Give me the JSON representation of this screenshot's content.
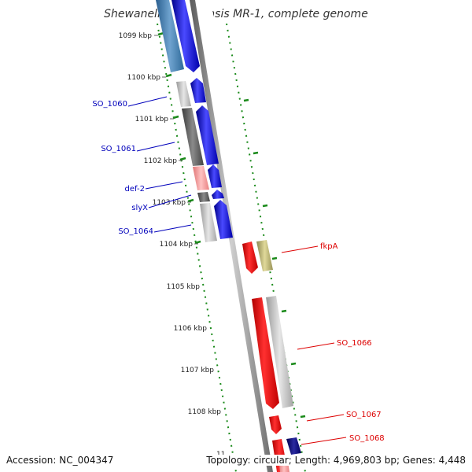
{
  "title": "Shewanella oneidensis MR-1, complete genome",
  "ticks": [
    {
      "label": "1099 kbp",
      "kbp": 1099
    },
    {
      "label": "1100 kbp",
      "kbp": 1100
    },
    {
      "label": "1101 kbp",
      "kbp": 1101
    },
    {
      "label": "1102 kbp",
      "kbp": 1102
    },
    {
      "label": "1103 kbp",
      "kbp": 1103
    },
    {
      "label": "1104 kbp",
      "kbp": 1104
    },
    {
      "label": "1105 kbp",
      "kbp": 1105
    },
    {
      "label": "1106 kbp",
      "kbp": 1106
    },
    {
      "label": "1107 kbp",
      "kbp": 1107
    },
    {
      "label": "1108 kbp",
      "kbp": 1108
    },
    {
      "label": "11",
      "kbp": 1109
    }
  ],
  "genes_left": [
    {
      "name": "SO_1060",
      "color": "#0000bb"
    },
    {
      "name": "SO_1061",
      "color": "#0000bb"
    },
    {
      "name": "def-2",
      "color": "#0000bb"
    },
    {
      "name": "slyX",
      "color": "#0000bb"
    },
    {
      "name": "SO_1064",
      "color": "#0000bb"
    }
  ],
  "genes_right": [
    {
      "name": "fkpA",
      "color": "#dd0000"
    },
    {
      "name": "SO_1066",
      "color": "#dd0000"
    },
    {
      "name": "SO_1067",
      "color": "#dd0000"
    },
    {
      "name": "SO_1068",
      "color": "#dd0000"
    }
  ],
  "colors": {
    "forward_cds": "#0000ee",
    "reverse_cds": "#ee0000",
    "backbone": "#888888",
    "gc_tick": "#1a8a1a"
  },
  "footer": {
    "accession": "Accession: NC_004347",
    "summary": "Topology: circular; Length: 4,969,803 bp; Genes: 4,448"
  }
}
